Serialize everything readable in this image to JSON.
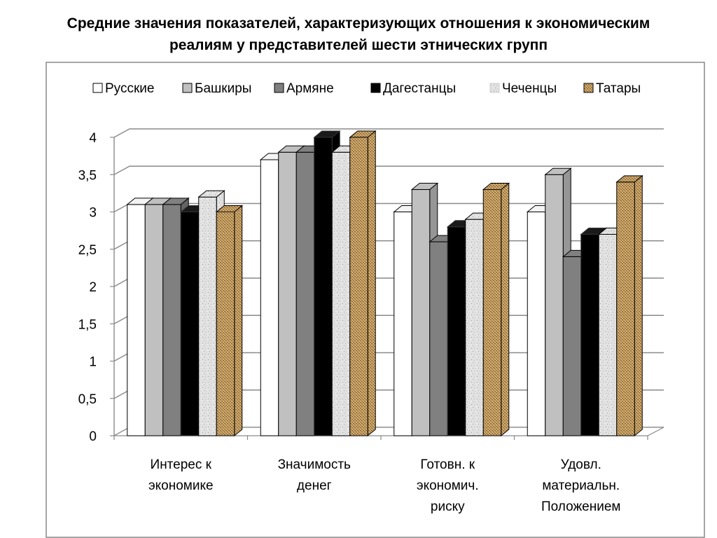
{
  "title_line1": "Средние значения показателей, характеризующих отношения к экономическим",
  "title_line2": "реалиям у представителей шести этнических групп",
  "chart_data": {
    "type": "bar",
    "title": "Средние значения показателей, характеризующих отношения к экономическим реалиям у представителей шести этнических групп",
    "categories": [
      [
        "Интерес к",
        "экономике"
      ],
      [
        "Значимость",
        "денег"
      ],
      [
        "Готовн. к",
        "экономич.",
        "риску"
      ],
      [
        "Удовл.",
        "материальн.",
        "Положением"
      ]
    ],
    "series": [
      {
        "name": "Русские",
        "color": "#ffffff",
        "pattern": "solid",
        "values": [
          3.1,
          3.7,
          3.0,
          3.0
        ]
      },
      {
        "name": "Башкиры",
        "color": "#c0c0c0",
        "pattern": "solid",
        "values": [
          3.1,
          3.8,
          3.3,
          3.5
        ]
      },
      {
        "name": "Армяне",
        "color": "#808080",
        "pattern": "solid",
        "values": [
          3.1,
          3.8,
          2.6,
          2.4
        ]
      },
      {
        "name": "Дагестанцы",
        "color": "#000000",
        "pattern": "solid",
        "values": [
          3.0,
          4.0,
          2.8,
          2.7
        ]
      },
      {
        "name": "Чеченцы",
        "color": "#dcdcdc",
        "pattern": "granite",
        "values": [
          3.2,
          3.8,
          2.9,
          2.7
        ]
      },
      {
        "name": "Татары",
        "color": "#c9a063",
        "pattern": "woven",
        "values": [
          3.0,
          4.0,
          3.3,
          3.4
        ]
      }
    ],
    "yticks": [
      "0",
      "0,5",
      "1",
      "1,5",
      "2",
      "2,5",
      "3",
      "3,5",
      "4"
    ],
    "ylim": [
      0,
      4
    ],
    "grid": true,
    "legend_position": "top"
  }
}
